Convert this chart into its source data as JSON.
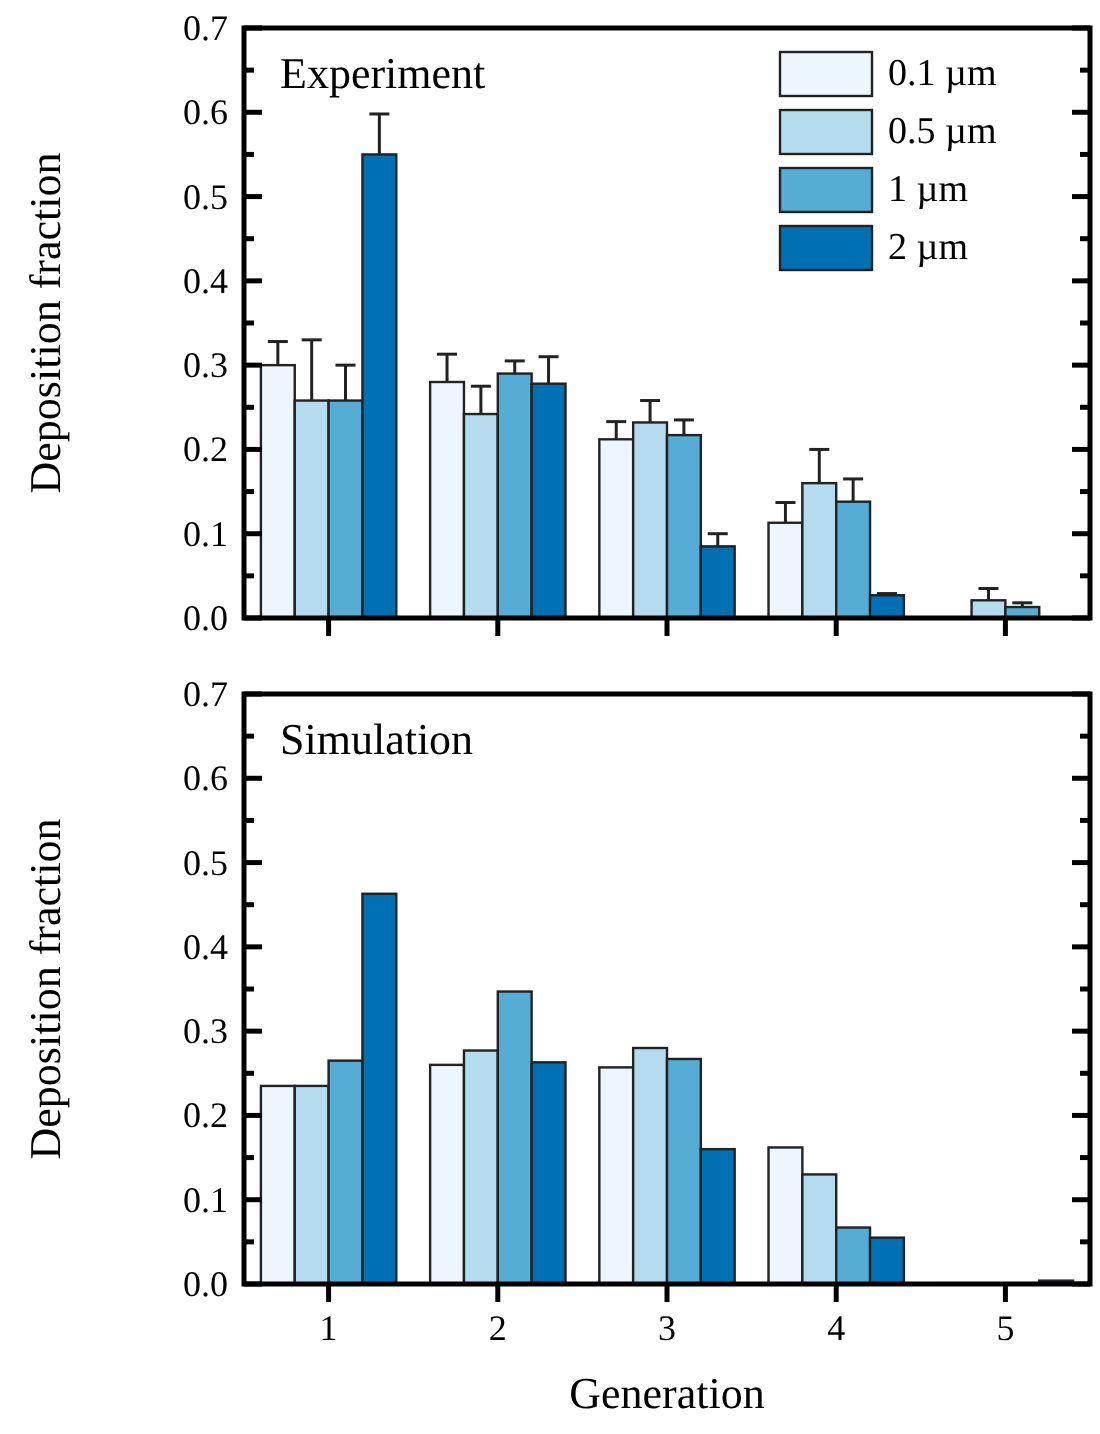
{
  "chart_data": [
    {
      "type": "bar",
      "title": "Experiment",
      "ylabel": "Deposition fraction",
      "categories": [
        "1",
        "2",
        "3",
        "4",
        "5"
      ],
      "series": [
        {
          "name": "0.1 µm",
          "color": "#eef6fd",
          "values": [
            0.3,
            0.28,
            0.212,
            0.113,
            null
          ],
          "errors": [
            0.028,
            0.033,
            0.021,
            0.024,
            null
          ]
        },
        {
          "name": "0.5 µm",
          "color": "#b4dcee",
          "values": [
            0.258,
            0.242,
            0.232,
            0.16,
            0.021
          ],
          "errors": [
            0.072,
            0.033,
            0.026,
            0.04,
            0.014
          ]
        },
        {
          "name": "1 µm",
          "color": "#55acd5",
          "values": [
            0.258,
            0.29,
            0.217,
            0.138,
            0.013
          ],
          "errors": [
            0.042,
            0.015,
            0.018,
            0.027,
            0.005
          ]
        },
        {
          "name": "2 µm",
          "color": "#0070b5",
          "values": [
            0.55,
            0.278,
            0.085,
            0.027,
            null
          ],
          "errors": [
            0.048,
            0.032,
            0.015,
            0.002,
            null
          ]
        }
      ],
      "ylim": [
        0,
        0.7
      ],
      "yticks": [
        {
          "value": 0,
          "label": "0.0"
        },
        {
          "value": 0.05,
          "label": null
        },
        0.1,
        {
          "value": 0.15,
          "label": null
        },
        0.2,
        {
          "value": 0.25,
          "label": null
        },
        0.3,
        {
          "value": 0.35,
          "label": null
        },
        0.4,
        {
          "value": 0.45,
          "label": null
        },
        0.5,
        {
          "value": 0.55,
          "label": null
        },
        0.6,
        {
          "value": 0.65,
          "label": null
        },
        0.7
      ],
      "tick_labels": "y",
      "legend": "top right",
      "grid": false
    },
    {
      "type": "bar",
      "title": "Simulation",
      "xlabel": "Generation",
      "ylabel": "Deposition fraction",
      "categories": [
        "1",
        "2",
        "3",
        "4",
        "5"
      ],
      "series": [
        {
          "color": "#eef6fd",
          "values": [
            0.235,
            0.26,
            0.257,
            0.162,
            0.001
          ]
        },
        {
          "color": "#b4dcee",
          "values": [
            0.235,
            0.277,
            0.28,
            0.13,
            0.001
          ]
        },
        {
          "color": "#55acd5",
          "values": [
            0.265,
            0.347,
            0.267,
            0.067,
            0.001
          ]
        },
        {
          "color": "#0070b5",
          "values": [
            0.463,
            0.263,
            0.16,
            0.055,
            0.004
          ]
        }
      ],
      "ylim": [
        0,
        0.7
      ],
      "yticks": [
        {
          "value": 0,
          "label": "0.0"
        },
        {
          "value": 0.05,
          "label": null
        },
        0.1,
        {
          "value": 0.15,
          "label": null
        },
        0.2,
        {
          "value": 0.25,
          "label": null
        },
        0.3,
        {
          "value": 0.35,
          "label": null
        },
        0.4,
        {
          "value": 0.45,
          "label": null
        },
        0.5,
        {
          "value": 0.55,
          "label": null
        },
        0.6,
        {
          "value": 0.65,
          "label": null
        },
        0.7
      ],
      "legend": false,
      "grid": false
    }
  ]
}
